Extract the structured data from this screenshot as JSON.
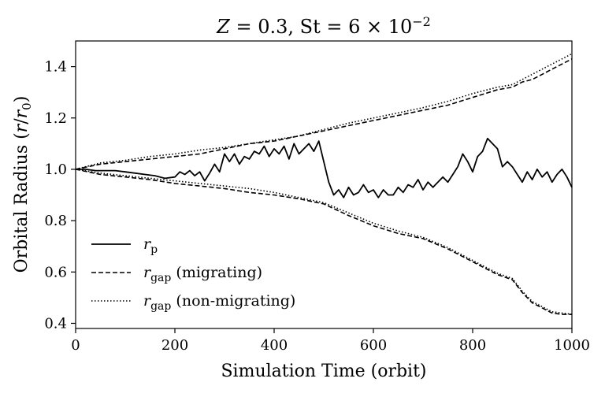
{
  "chart_data": {
    "type": "line",
    "title": "Z = 0.3, St = 6 × 10^−2",
    "title_parts": {
      "z": "Z",
      "z_value": " = 0.3, ",
      "st": "St",
      "st_value": " = 6 × 10",
      "exponent": "−2"
    },
    "xlabel": "Simulation Time (orbit)",
    "ylabel": "Orbital Radius (r/r0)",
    "ylabel_parts": {
      "text": "Orbital Radius (",
      "r": "r",
      "slash": "/",
      "r0": "r",
      "sub0": "0",
      "close": ")"
    },
    "xlim": [
      0,
      1000
    ],
    "ylim": [
      0.38,
      1.5
    ],
    "xticks": [
      0,
      200,
      400,
      600,
      800,
      1000
    ],
    "xtick_labels": [
      "0",
      "200",
      "400",
      "600",
      "800",
      "1000"
    ],
    "yticks": [
      0.4,
      0.6,
      0.8,
      1.0,
      1.2,
      1.4
    ],
    "ytick_labels": [
      "0.4",
      "0.6",
      "0.8",
      "1.0",
      "1.2",
      "1.4"
    ],
    "grid": false,
    "legend_position": "bottom-left",
    "legend": [
      {
        "symbol": "r",
        "sub": "p",
        "suffix": "",
        "style": "solid"
      },
      {
        "symbol": "r",
        "sub": "gap",
        "suffix": " (migrating)",
        "style": "dashed"
      },
      {
        "symbol": "r",
        "sub": "gap",
        "suffix": " (non-migrating)",
        "style": "dotted"
      }
    ],
    "series": [
      {
        "style": "solid",
        "x": [
          0,
          20,
          40,
          60,
          80,
          100,
          120,
          140,
          160,
          180,
          200,
          210,
          220,
          230,
          240,
          250,
          260,
          270,
          280,
          290,
          300,
          310,
          320,
          330,
          340,
          350,
          360,
          370,
          380,
          390,
          400,
          410,
          420,
          430,
          440,
          450,
          460,
          470,
          480,
          490,
          500,
          510,
          520,
          530,
          540,
          550,
          560,
          570,
          580,
          590,
          600,
          610,
          620,
          630,
          640,
          650,
          660,
          670,
          680,
          690,
          700,
          710,
          720,
          730,
          740,
          750,
          760,
          770,
          780,
          790,
          800,
          810,
          820,
          830,
          840,
          850,
          860,
          870,
          880,
          890,
          900,
          910,
          920,
          930,
          940,
          950,
          960,
          970,
          980,
          990,
          1000
        ],
        "y": [
          1.0,
          1.0,
          0.995,
          0.995,
          0.995,
          0.99,
          0.985,
          0.98,
          0.975,
          0.965,
          0.97,
          0.99,
          0.98,
          0.995,
          0.975,
          0.99,
          0.955,
          0.985,
          1.02,
          0.99,
          1.06,
          1.03,
          1.06,
          1.02,
          1.05,
          1.04,
          1.07,
          1.06,
          1.09,
          1.05,
          1.08,
          1.06,
          1.09,
          1.04,
          1.1,
          1.06,
          1.08,
          1.1,
          1.07,
          1.11,
          1.03,
          0.95,
          0.9,
          0.92,
          0.89,
          0.93,
          0.9,
          0.91,
          0.94,
          0.91,
          0.92,
          0.89,
          0.92,
          0.9,
          0.9,
          0.93,
          0.91,
          0.94,
          0.93,
          0.96,
          0.92,
          0.95,
          0.93,
          0.95,
          0.97,
          0.95,
          0.98,
          1.01,
          1.06,
          1.03,
          0.99,
          1.05,
          1.07,
          1.12,
          1.1,
          1.08,
          1.01,
          1.03,
          1.01,
          0.98,
          0.95,
          0.99,
          0.96,
          1.0,
          0.97,
          0.99,
          0.95,
          0.98,
          1.0,
          0.97,
          0.93
        ]
      },
      {
        "style": "dashed",
        "x": [
          0,
          50,
          100,
          150,
          200,
          250,
          300,
          350,
          400,
          450,
          500,
          550,
          600,
          650,
          700,
          750,
          800,
          850,
          880,
          900,
          920,
          940,
          960,
          980,
          1000
        ],
        "y": [
          1.0,
          1.02,
          1.03,
          1.04,
          1.05,
          1.06,
          1.08,
          1.1,
          1.11,
          1.13,
          1.15,
          1.17,
          1.19,
          1.21,
          1.23,
          1.25,
          1.28,
          1.31,
          1.32,
          1.34,
          1.35,
          1.37,
          1.39,
          1.41,
          1.43
        ]
      },
      {
        "style": "dashed",
        "x": [
          0,
          50,
          100,
          150,
          200,
          250,
          300,
          350,
          400,
          450,
          500,
          550,
          600,
          650,
          700,
          750,
          800,
          850,
          880,
          900,
          920,
          940,
          960,
          980,
          1000
        ],
        "y": [
          1.0,
          0.98,
          0.97,
          0.96,
          0.945,
          0.935,
          0.925,
          0.91,
          0.9,
          0.885,
          0.865,
          0.82,
          0.78,
          0.75,
          0.73,
          0.69,
          0.64,
          0.59,
          0.57,
          0.52,
          0.48,
          0.46,
          0.44,
          0.435,
          0.435
        ]
      },
      {
        "style": "dotted",
        "x": [
          0,
          50,
          100,
          150,
          200,
          250,
          300,
          350,
          400,
          450,
          500,
          550,
          600,
          650,
          700,
          750,
          800,
          850,
          880,
          900,
          920,
          940,
          960,
          980,
          1000
        ],
        "y": [
          1.0,
          1.025,
          1.035,
          1.05,
          1.06,
          1.075,
          1.085,
          1.1,
          1.115,
          1.13,
          1.155,
          1.18,
          1.2,
          1.22,
          1.24,
          1.265,
          1.295,
          1.32,
          1.33,
          1.35,
          1.37,
          1.39,
          1.41,
          1.43,
          1.45
        ]
      },
      {
        "style": "dotted",
        "x": [
          0,
          50,
          100,
          150,
          200,
          250,
          300,
          350,
          400,
          450,
          500,
          550,
          600,
          650,
          700,
          750,
          800,
          850,
          880,
          900,
          920,
          940,
          960,
          980,
          1000
        ],
        "y": [
          1.0,
          0.985,
          0.975,
          0.965,
          0.955,
          0.945,
          0.935,
          0.925,
          0.91,
          0.89,
          0.87,
          0.83,
          0.79,
          0.76,
          0.735,
          0.695,
          0.645,
          0.595,
          0.575,
          0.525,
          0.485,
          0.465,
          0.445,
          0.44,
          0.435
        ]
      }
    ]
  }
}
